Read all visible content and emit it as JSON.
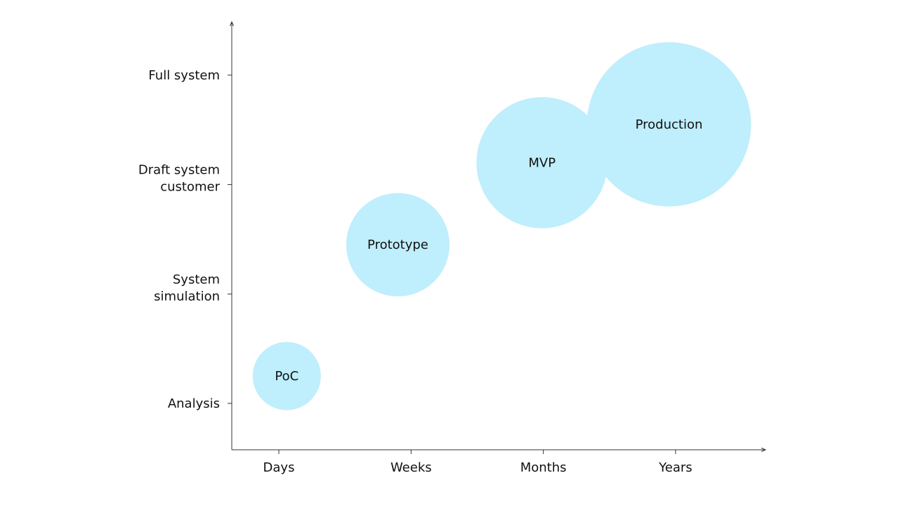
{
  "chart_data": {
    "type": "scatter",
    "title": "",
    "xlabel": "",
    "ylabel": "",
    "x_categories": [
      "Days",
      "Weeks",
      "Months",
      "Years"
    ],
    "y_categories": [
      [
        "Analysis"
      ],
      [
        "System",
        "simulation"
      ],
      [
        "Draft system",
        "customer"
      ],
      [
        "Full system"
      ]
    ],
    "points": [
      {
        "label": "PoC",
        "x": 0.06,
        "y": 0.25,
        "size": 1
      },
      {
        "label": "Prototype",
        "x": 0.9,
        "y": 1.45,
        "size": 2.3
      },
      {
        "label": "MVP",
        "x": 1.99,
        "y": 2.2,
        "size": 3.7
      },
      {
        "label": "Production",
        "x": 2.95,
        "y": 2.55,
        "size": 5.8
      }
    ],
    "colors": {
      "bubble": "#bfeefc",
      "axis": "#333333",
      "text": "#111111"
    }
  }
}
